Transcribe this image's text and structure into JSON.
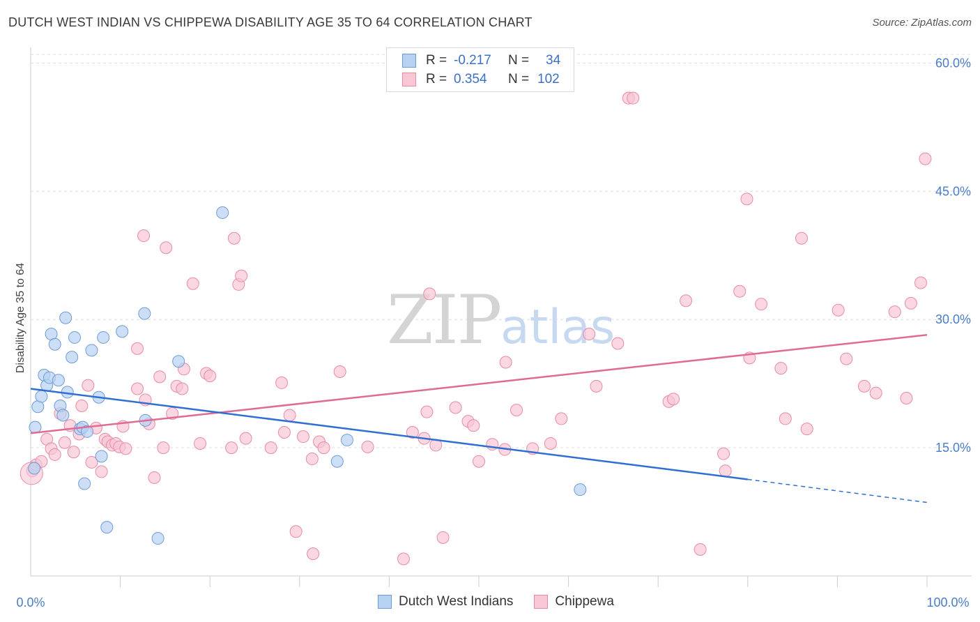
{
  "title": "DUTCH WEST INDIAN VS CHIPPEWA DISABILITY AGE 35 TO 64 CORRELATION CHART",
  "source": "Source: ZipAtlas.com",
  "watermark": {
    "zip": "ZIP",
    "atlas": "atlas"
  },
  "legend": {
    "rows": [
      {
        "r_label": "R =",
        "r_value": "-0.217",
        "n_label": "N =",
        "n_value": "34"
      },
      {
        "r_label": "R =",
        "r_value": "0.354",
        "n_label": "N =",
        "n_value": "102"
      }
    ]
  },
  "chart_data": {
    "type": "scatter",
    "xlabel": "",
    "ylabel": "Disability Age 35 to 64",
    "xlim": [
      0,
      100
    ],
    "ylim": [
      0,
      61.5
    ],
    "x_tick_labels": [
      "0.0%",
      "100.0%"
    ],
    "y_ticks": [
      15,
      30,
      45,
      60
    ],
    "y_tick_labels": [
      "15.0%",
      "30.0%",
      "45.0%",
      "60.0%"
    ],
    "legend_position": "top-center",
    "colors": {
      "series1_fill": "#b7d1f2",
      "series1_stroke": "#6e9bd8",
      "series1_line": "#2f6fd1",
      "series2_fill": "#f8c6d4",
      "series2_stroke": "#e88aa7",
      "series2_line": "#e06a93",
      "grid": "#dddddd",
      "axis": "#cccccc"
    },
    "series": [
      {
        "name": "Dutch West Indians",
        "trend": {
          "x0": 0,
          "y0": 21.9,
          "x1": 80,
          "y1": 11.3,
          "dash_x1": 100,
          "dash_y1": 8.6
        },
        "points": [
          [
            0.4,
            12.6
          ],
          [
            0.5,
            17.4
          ],
          [
            0.8,
            19.8
          ],
          [
            1.2,
            21.0
          ],
          [
            1.5,
            23.5
          ],
          [
            1.8,
            22.3
          ],
          [
            2.1,
            23.2
          ],
          [
            2.3,
            28.3
          ],
          [
            2.7,
            27.1
          ],
          [
            3.1,
            22.9
          ],
          [
            3.3,
            19.9
          ],
          [
            3.6,
            18.8
          ],
          [
            3.9,
            30.2
          ],
          [
            4.1,
            21.5
          ],
          [
            4.6,
            25.6
          ],
          [
            4.9,
            27.9
          ],
          [
            5.5,
            17.2
          ],
          [
            5.8,
            17.4
          ],
          [
            6.0,
            10.8
          ],
          [
            6.3,
            16.9
          ],
          [
            6.8,
            26.4
          ],
          [
            7.6,
            20.9
          ],
          [
            7.9,
            14.0
          ],
          [
            8.1,
            27.9
          ],
          [
            8.5,
            5.7
          ],
          [
            10.2,
            28.6
          ],
          [
            12.7,
            30.7
          ],
          [
            12.8,
            18.2
          ],
          [
            14.2,
            4.4
          ],
          [
            16.5,
            25.1
          ],
          [
            21.4,
            42.5
          ],
          [
            34.2,
            13.4
          ],
          [
            35.3,
            15.9
          ],
          [
            61.3,
            10.1
          ]
        ]
      },
      {
        "name": "Chippewa",
        "trend": {
          "x0": 0,
          "y0": 16.7,
          "x1": 100,
          "y1": 28.2
        },
        "points": [
          [
            0.2,
            12.3
          ],
          [
            0.6,
            13.0
          ],
          [
            1.2,
            13.4
          ],
          [
            1.8,
            16.0
          ],
          [
            2.3,
            14.9
          ],
          [
            2.7,
            14.2
          ],
          [
            3.3,
            19.0
          ],
          [
            3.8,
            15.6
          ],
          [
            4.4,
            17.6
          ],
          [
            4.8,
            14.5
          ],
          [
            5.4,
            16.6
          ],
          [
            5.7,
            19.9
          ],
          [
            6.4,
            22.3
          ],
          [
            6.8,
            13.3
          ],
          [
            7.3,
            17.3
          ],
          [
            7.9,
            12.2
          ],
          [
            8.3,
            16.0
          ],
          [
            8.6,
            15.7
          ],
          [
            9.1,
            15.3
          ],
          [
            9.5,
            15.5
          ],
          [
            9.9,
            15.1
          ],
          [
            10.3,
            17.5
          ],
          [
            10.6,
            14.9
          ],
          [
            11.9,
            26.6
          ],
          [
            11.9,
            21.9
          ],
          [
            12.6,
            39.8
          ],
          [
            12.8,
            20.6
          ],
          [
            13.2,
            17.8
          ],
          [
            13.8,
            11.5
          ],
          [
            14.4,
            23.3
          ],
          [
            14.8,
            15.0
          ],
          [
            15.1,
            38.4
          ],
          [
            15.8,
            19.0
          ],
          [
            16.3,
            22.2
          ],
          [
            16.9,
            21.9
          ],
          [
            17.1,
            24.2
          ],
          [
            18.1,
            34.2
          ],
          [
            18.9,
            15.5
          ],
          [
            19.6,
            23.7
          ],
          [
            20.0,
            23.4
          ],
          [
            22.4,
            15.0
          ],
          [
            22.7,
            39.5
          ],
          [
            23.2,
            34.1
          ],
          [
            23.5,
            35.1
          ],
          [
            24.0,
            16.1
          ],
          [
            26.8,
            15.0
          ],
          [
            28.0,
            22.6
          ],
          [
            28.3,
            16.8
          ],
          [
            28.9,
            18.8
          ],
          [
            29.6,
            5.2
          ],
          [
            30.4,
            16.3
          ],
          [
            31.4,
            13.7
          ],
          [
            31.5,
            2.6
          ],
          [
            32.2,
            15.7
          ],
          [
            32.7,
            15.0
          ],
          [
            34.5,
            23.9
          ],
          [
            37.6,
            15.1
          ],
          [
            41.6,
            2.0
          ],
          [
            42.6,
            16.8
          ],
          [
            43.9,
            16.1
          ],
          [
            44.2,
            19.2
          ],
          [
            44.5,
            33.0
          ],
          [
            45.2,
            15.3
          ],
          [
            46.0,
            4.5
          ],
          [
            47.4,
            19.7
          ],
          [
            48.8,
            18.1
          ],
          [
            49.4,
            17.6
          ],
          [
            50.0,
            13.4
          ],
          [
            51.5,
            15.4
          ],
          [
            52.9,
            14.8
          ],
          [
            53.0,
            25.0
          ],
          [
            54.2,
            19.4
          ],
          [
            56.0,
            14.9
          ],
          [
            58.0,
            15.5
          ],
          [
            59.2,
            18.4
          ],
          [
            62.3,
            28.3
          ],
          [
            63.1,
            22.2
          ],
          [
            65.5,
            27.2
          ],
          [
            66.7,
            55.9
          ],
          [
            67.2,
            55.9
          ],
          [
            71.2,
            20.4
          ],
          [
            71.7,
            20.7
          ],
          [
            73.1,
            32.2
          ],
          [
            74.7,
            3.1
          ],
          [
            77.3,
            14.3
          ],
          [
            77.5,
            12.3
          ],
          [
            79.1,
            33.3
          ],
          [
            79.9,
            44.1
          ],
          [
            80.2,
            25.5
          ],
          [
            81.5,
            31.8
          ],
          [
            83.7,
            24.3
          ],
          [
            84.2,
            18.4
          ],
          [
            86.0,
            39.5
          ],
          [
            86.6,
            17.2
          ],
          [
            90.1,
            31.1
          ],
          [
            91.0,
            25.4
          ],
          [
            93.0,
            22.2
          ],
          [
            94.3,
            21.4
          ],
          [
            96.4,
            30.9
          ],
          [
            97.7,
            20.8
          ],
          [
            98.2,
            31.9
          ],
          [
            99.3,
            34.3
          ],
          [
            99.8,
            48.8
          ]
        ]
      }
    ]
  }
}
